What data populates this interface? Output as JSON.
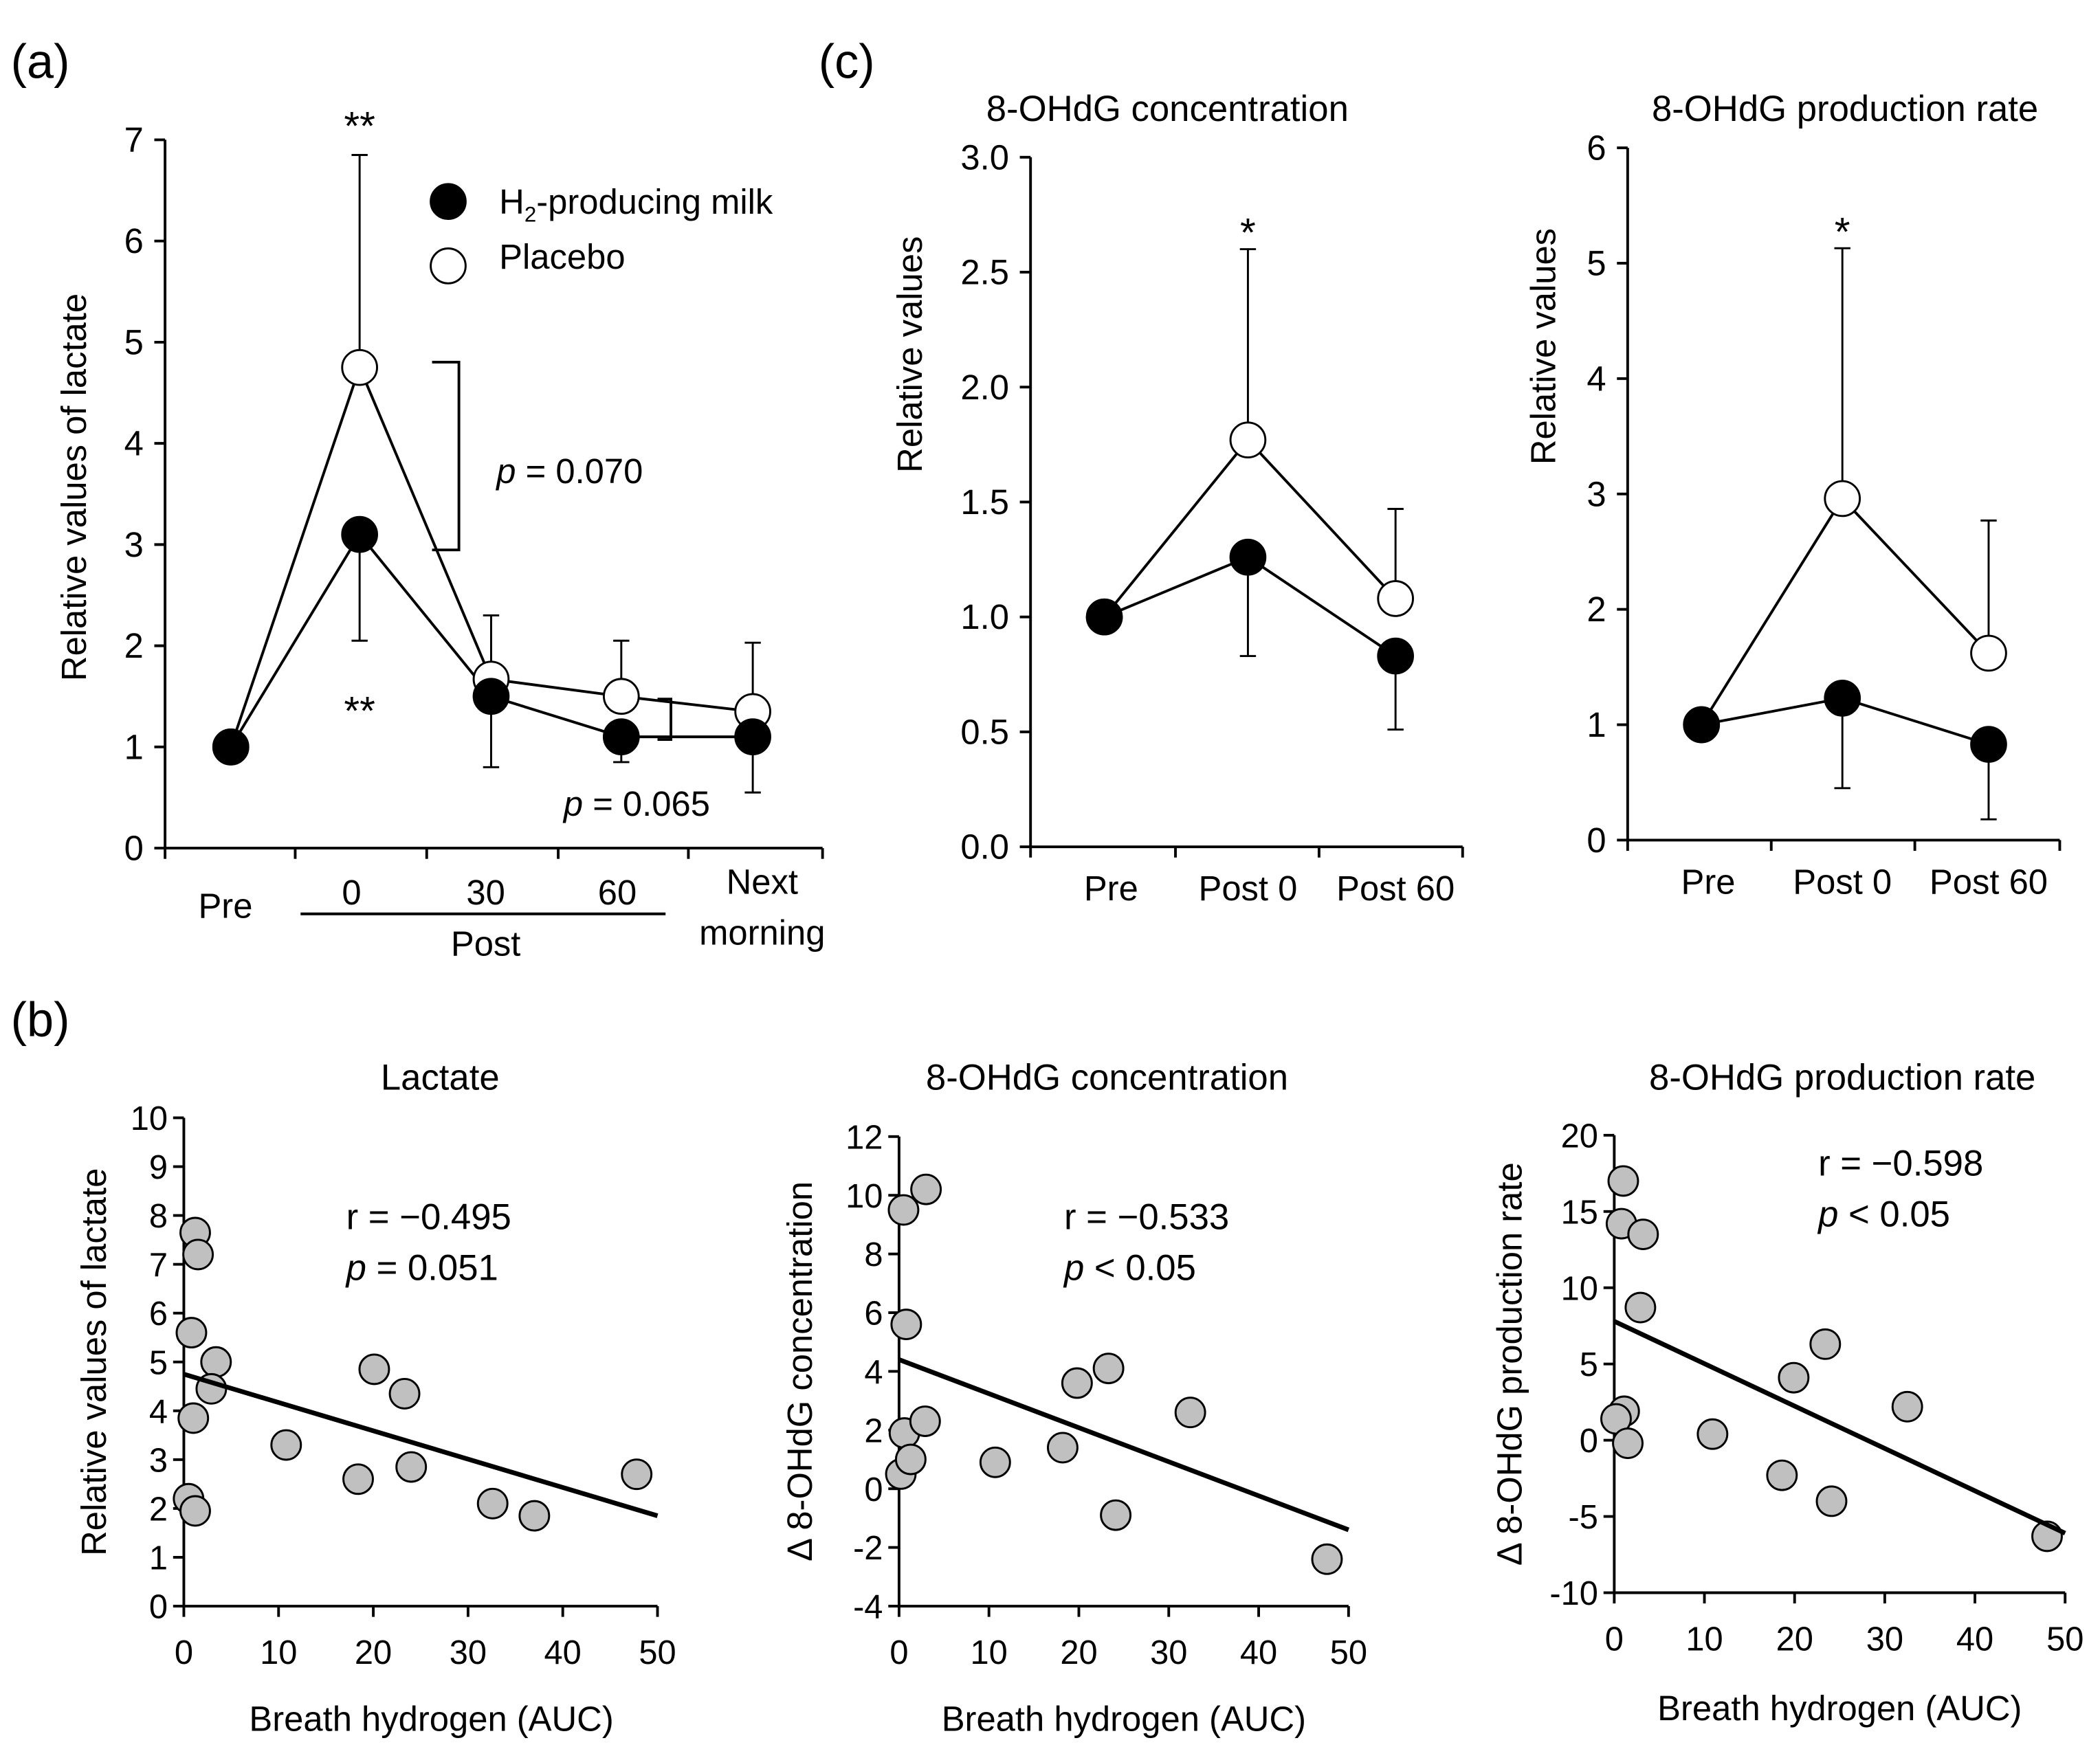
{
  "panel_labels": {
    "a": "(a)",
    "b": "(b)",
    "c": "(c)"
  },
  "legend": {
    "h2": "H₂-producing milk",
    "h2_main": "H",
    "h2_sub": "2",
    "h2_rest": "-producing milk",
    "placebo": "Placebo"
  },
  "colors": {
    "h2_fill": "#000000",
    "placebo_fill": "#ffffff",
    "scatter_fill": "#c0c0c0",
    "line": "#000000"
  },
  "chart_data": [
    {
      "id": "a",
      "type": "line",
      "title": "",
      "ylabel": "Relative values of lactate",
      "ylim": [
        0,
        7
      ],
      "yticks": [
        "0",
        "1",
        "2",
        "3",
        "4",
        "5",
        "6",
        "7"
      ],
      "categories": [
        "Pre",
        "0",
        "30",
        "60",
        "Next morning"
      ],
      "xtick_labels": {
        "pre": "Pre",
        "t0": "0",
        "t30": "30",
        "t60": "60",
        "post_group": "Post",
        "next1": "Next",
        "next2": "morning"
      },
      "series": [
        {
          "name": "H₂-producing milk",
          "values": [
            1.0,
            3.1,
            1.5,
            1.1,
            1.1
          ],
          "error_bar_end": [
            null,
            2.05,
            0.8,
            0.85,
            0.55
          ]
        },
        {
          "name": "Placebo",
          "values": [
            1.0,
            4.75,
            1.67,
            1.5,
            1.35
          ],
          "error_bar_end": [
            null,
            6.85,
            2.3,
            2.05,
            2.03
          ]
        }
      ],
      "annotations": {
        "star_top": "**",
        "star_bottom": "**",
        "p1": "p",
        "p1_rest": " = 0.070",
        "p2": "p",
        "p2_rest": " = 0.065"
      }
    },
    {
      "id": "c1",
      "type": "line",
      "title": "8-OHdG concentration",
      "ylabel": "Relative values",
      "ylim": [
        0,
        3
      ],
      "yticks": [
        "0.0",
        "0.5",
        "1.0",
        "1.5",
        "2.0",
        "2.5",
        "3.0"
      ],
      "categories": [
        "Pre",
        "Post 0",
        "Post 60"
      ],
      "series": [
        {
          "name": "H₂-producing milk",
          "values": [
            1.0,
            1.26,
            0.83
          ],
          "error_bar_end": [
            null,
            0.83,
            0.51
          ]
        },
        {
          "name": "Placebo",
          "values": [
            1.0,
            1.77,
            1.08
          ],
          "error_bar_end": [
            null,
            2.6,
            1.47
          ]
        }
      ],
      "annotations": {
        "star": "*"
      }
    },
    {
      "id": "c2",
      "type": "line",
      "title": "8-OHdG production rate",
      "ylabel": "Relative values",
      "ylim": [
        0,
        6
      ],
      "yticks": [
        "0",
        "1",
        "2",
        "3",
        "4",
        "5",
        "6"
      ],
      "categories": [
        "Pre",
        "Post 0",
        "Post 60"
      ],
      "series": [
        {
          "name": "H₂-producing milk",
          "values": [
            1.0,
            1.23,
            0.83
          ],
          "error_bar_end": [
            null,
            0.45,
            0.18
          ]
        },
        {
          "name": "Placebo",
          "values": [
            1.0,
            2.96,
            1.62
          ],
          "error_bar_end": [
            null,
            5.13,
            2.77
          ]
        }
      ],
      "annotations": {
        "star": "*"
      }
    },
    {
      "id": "b1",
      "type": "scatter",
      "title": "Lactate",
      "xlabel": "Breath hydrogen (AUC)",
      "ylabel": "Relative values of lactate",
      "xlim": [
        0,
        50
      ],
      "ylim": [
        0,
        10
      ],
      "xticks": [
        "0",
        "10",
        "20",
        "30",
        "40",
        "50"
      ],
      "yticks": [
        "0",
        "1",
        "2",
        "3",
        "4",
        "5",
        "6",
        "7",
        "8",
        "9",
        "10"
      ],
      "points": [
        [
          1.2,
          7.65
        ],
        [
          1.5,
          7.2
        ],
        [
          0.8,
          5.6
        ],
        [
          3.4,
          5.0
        ],
        [
          2.9,
          4.45
        ],
        [
          1.0,
          3.85
        ],
        [
          0.5,
          2.2
        ],
        [
          1.2,
          1.95
        ],
        [
          10.8,
          3.3
        ],
        [
          20.1,
          4.85
        ],
        [
          23.3,
          4.35
        ],
        [
          18.4,
          2.6
        ],
        [
          24.0,
          2.85
        ],
        [
          32.6,
          2.1
        ],
        [
          37.0,
          1.85
        ],
        [
          47.8,
          2.7
        ]
      ],
      "regression": [
        [
          0,
          4.75
        ],
        [
          50,
          1.85
        ]
      ],
      "annotations": {
        "r": "r = −0.495",
        "p": "p",
        "p_rest": " = 0.051"
      }
    },
    {
      "id": "b2",
      "type": "scatter",
      "title": "8-OHdG concentration",
      "xlabel": "Breath hydrogen (AUC)",
      "ylabel": "Δ 8-OHdG concentration",
      "xlim": [
        0,
        50
      ],
      "ylim": [
        -4,
        12
      ],
      "xticks": [
        "0",
        "10",
        "20",
        "30",
        "40",
        "50"
      ],
      "yticks": [
        "-4",
        "-2",
        "0",
        "2",
        "4",
        "6",
        "8",
        "10",
        "12"
      ],
      "points": [
        [
          0.5,
          9.5
        ],
        [
          3.0,
          10.2
        ],
        [
          0.8,
          5.6
        ],
        [
          0.2,
          0.5
        ],
        [
          0.6,
          1.9
        ],
        [
          1.3,
          1.0
        ],
        [
          2.9,
          2.3
        ],
        [
          10.7,
          0.9
        ],
        [
          18.2,
          1.4
        ],
        [
          19.8,
          3.6
        ],
        [
          23.3,
          4.1
        ],
        [
          24.1,
          -0.9
        ],
        [
          32.4,
          2.6
        ],
        [
          47.6,
          -2.4
        ]
      ],
      "regression": [
        [
          0,
          4.4
        ],
        [
          50,
          -1.4
        ]
      ],
      "annotations": {
        "r": "r = −0.533",
        "p": "p",
        "p_rest": " < 0.05"
      }
    },
    {
      "id": "b3",
      "type": "scatter",
      "title": "8-OHdG production rate",
      "xlabel": "Breath hydrogen (AUC)",
      "ylabel": "Δ 8-OHdG production rate",
      "xlim": [
        0,
        50
      ],
      "ylim": [
        -10,
        20
      ],
      "xticks": [
        "0",
        "10",
        "20",
        "30",
        "40",
        "50"
      ],
      "yticks": [
        "-10",
        "-5",
        "0",
        "5",
        "10",
        "15",
        "20"
      ],
      "points": [
        [
          1.0,
          17.0
        ],
        [
          0.8,
          14.2
        ],
        [
          3.2,
          13.5
        ],
        [
          2.9,
          8.7
        ],
        [
          1.1,
          1.9
        ],
        [
          0.2,
          1.4
        ],
        [
          1.5,
          -0.2
        ],
        [
          10.9,
          0.4
        ],
        [
          18.6,
          -2.3
        ],
        [
          19.9,
          4.1
        ],
        [
          23.4,
          6.3
        ],
        [
          24.1,
          -4.0
        ],
        [
          32.5,
          2.2
        ],
        [
          48.0,
          -6.3
        ]
      ],
      "regression": [
        [
          0,
          7.8
        ],
        [
          50,
          -6.1
        ]
      ],
      "annotations": {
        "r": "r = −0.598",
        "p": "p",
        "p_rest": " < 0.05"
      }
    }
  ]
}
